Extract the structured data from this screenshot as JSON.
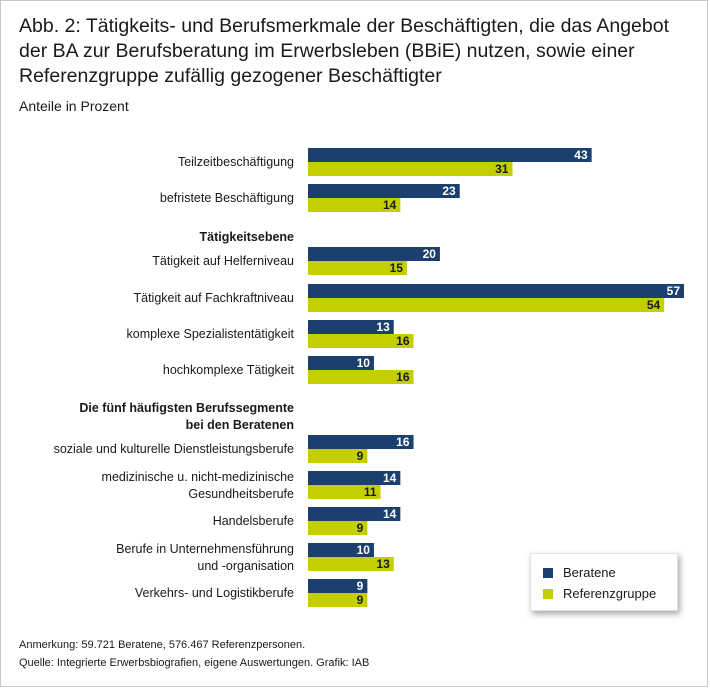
{
  "header": {
    "title": "Abb. 2: Tätigkeits- und Berufsmerkmale der Beschäftigten, die das Angebot der BA zur Berufsberatung im Erwerbsleben (BBiE) nutzen, sowie einer Referenzgruppe zufällig gezogener Beschäftigter",
    "subtitle": "Anteile in Prozent"
  },
  "colors": {
    "beratene": "#1b3f6e",
    "referenz": "#c3cf00"
  },
  "chart_data": {
    "type": "bar",
    "orientation": "horizontal",
    "categories": [
      "Teilzeitbeschäftigung",
      "befristete Beschäftigung",
      "Tätigkeit auf Helferniveau",
      "Tätigkeit auf Fachkraftniveau",
      "komplexe Spezialistentätigkeit",
      "hochkomplexe Tätigkeit",
      "soziale und kulturelle Dienstleistungsberufe",
      "medizinische u. nicht-medizinische Gesundheitsberufe",
      "Handelsberufe",
      "Berufe in Unternehmensführung und -organisation",
      "Verkehrs- und Logistikberufe"
    ],
    "groups": [
      {
        "label": "Tätigkeitsebene",
        "before_index": 2
      },
      {
        "label": "Die fünf häufigsten Berufssegmente bei den Beratenen",
        "before_index": 6
      }
    ],
    "series": [
      {
        "name": "Beratene",
        "values": [
          43,
          23,
          20,
          57,
          13,
          10,
          16,
          14,
          14,
          10,
          9
        ]
      },
      {
        "name": "Referenzgruppe",
        "values": [
          31,
          14,
          15,
          54,
          16,
          16,
          9,
          11,
          9,
          13,
          9
        ]
      }
    ],
    "xlim": [
      0,
      57
    ],
    "grid": false,
    "legend_position": "bottom-right"
  },
  "legend": {
    "items": [
      "Beratene",
      "Referenzgruppe"
    ]
  },
  "footnotes": {
    "note": "Anmerkung: 59.721 Beratene, 576.467 Referenzpersonen.",
    "source": "Quelle: Integrierte Erwerbsbiografien, eigene Auswertungen. Grafik: IAB"
  }
}
